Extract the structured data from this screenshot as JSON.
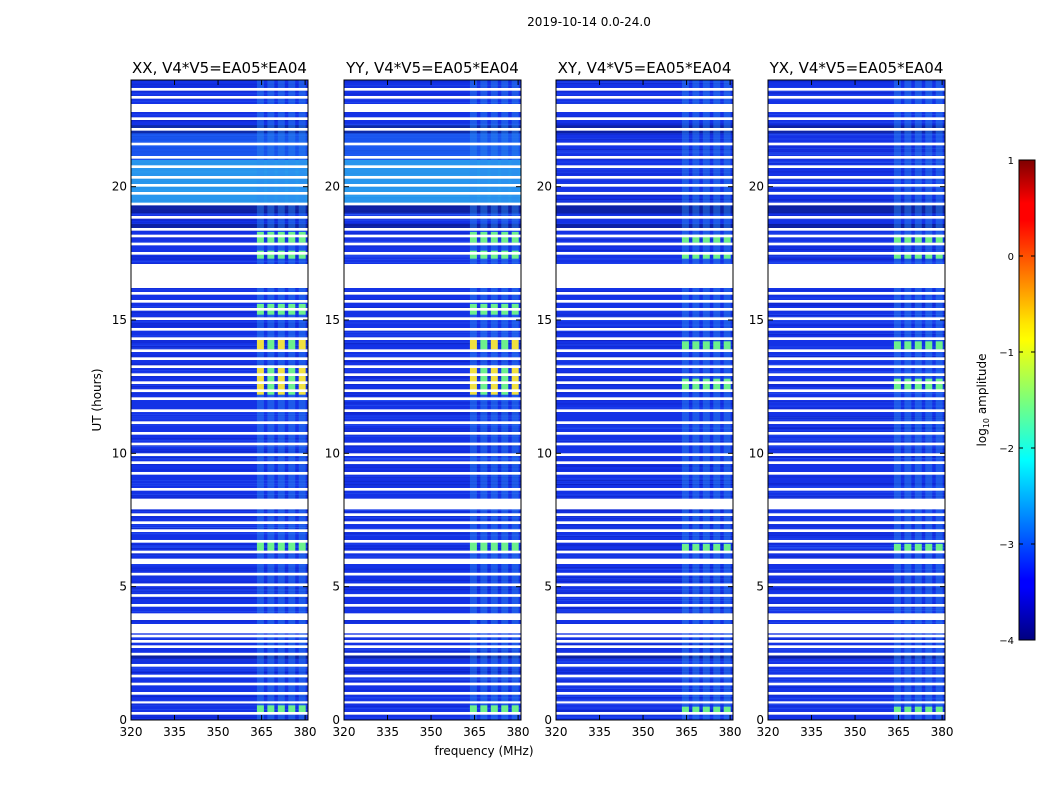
{
  "figure": {
    "title": "2019-10-14 0.0-24.0",
    "xlabel": "frequency (MHz)",
    "ylabel": "UT (hours)"
  },
  "chart_data": {
    "type": "heatmap",
    "x_range": [
      320,
      381
    ],
    "y_range": [
      0,
      24
    ],
    "xticks": [
      320,
      335,
      350,
      365,
      380
    ],
    "yticks": [
      0,
      5,
      10,
      15,
      20
    ],
    "panels": [
      {
        "title": "XX, V4*V5=EA05*EA04",
        "pol": "XX",
        "strong_rfi": true,
        "bright_evening": true,
        "ylabel_shown": true,
        "xlabel_shown": false
      },
      {
        "title": "YY, V4*V5=EA05*EA04",
        "pol": "YY",
        "strong_rfi": true,
        "bright_evening": true,
        "ylabel_shown": false,
        "xlabel_shown": true
      },
      {
        "title": "XY, V4*V5=EA05*EA04",
        "pol": "XY",
        "strong_rfi": false,
        "bright_evening": false,
        "ylabel_shown": false,
        "xlabel_shown": false
      },
      {
        "title": "YX, V4*V5=EA05*EA04",
        "pol": "YX",
        "strong_rfi": false,
        "bright_evening": false,
        "ylabel_shown": false,
        "xlabel_shown": false
      }
    ],
    "rfi_band_mhz": [
      363,
      381
    ],
    "flagged_time_ranges_hours": [
      [
        0.2,
        0.3
      ],
      [
        0.62,
        0.7
      ],
      [
        0.95,
        1.05
      ],
      [
        1.3,
        1.4
      ],
      [
        1.6,
        1.7
      ],
      [
        2.0,
        2.1
      ],
      [
        2.42,
        2.52
      ],
      [
        2.7,
        2.8
      ],
      [
        2.9,
        3.0
      ],
      [
        3.1,
        3.2
      ],
      [
        3.25,
        3.6
      ],
      [
        3.75,
        4.0
      ],
      [
        4.25,
        4.35
      ],
      [
        4.62,
        4.72
      ],
      [
        5.02,
        5.12
      ],
      [
        5.42,
        5.52
      ],
      [
        5.85,
        6.05
      ],
      [
        6.25,
        6.35
      ],
      [
        6.65,
        6.75
      ],
      [
        7.05,
        7.15
      ],
      [
        7.35,
        7.45
      ],
      [
        7.65,
        7.75
      ],
      [
        7.9,
        8.3
      ],
      [
        8.6,
        8.7
      ],
      [
        9.2,
        9.3
      ],
      [
        9.6,
        9.7
      ],
      [
        9.9,
        10.0
      ],
      [
        10.3,
        10.4
      ],
      [
        10.7,
        10.8
      ],
      [
        11.1,
        11.2
      ],
      [
        11.55,
        11.65
      ],
      [
        12.0,
        12.1
      ],
      [
        12.3,
        12.4
      ],
      [
        12.6,
        12.7
      ],
      [
        12.9,
        13.0
      ],
      [
        13.2,
        13.3
      ],
      [
        13.5,
        13.6
      ],
      [
        13.8,
        13.9
      ],
      [
        14.25,
        14.35
      ],
      [
        14.6,
        14.7
      ],
      [
        15.0,
        15.1
      ],
      [
        15.35,
        15.45
      ],
      [
        15.65,
        15.75
      ],
      [
        15.95,
        16.05
      ],
      [
        16.2,
        17.1
      ],
      [
        17.45,
        17.55
      ],
      [
        17.8,
        17.9
      ],
      [
        18.1,
        18.2
      ],
      [
        18.35,
        18.45
      ],
      [
        18.8,
        18.9
      ],
      [
        19.3,
        19.4
      ],
      [
        19.7,
        19.8
      ],
      [
        20.0,
        20.1
      ],
      [
        20.3,
        20.4
      ],
      [
        20.7,
        20.8
      ],
      [
        21.05,
        21.15
      ],
      [
        21.55,
        21.65
      ],
      [
        22.1,
        22.2
      ],
      [
        22.5,
        22.6
      ],
      [
        22.8,
        23.1
      ],
      [
        23.3,
        23.4
      ],
      [
        23.6,
        23.7
      ]
    ],
    "colorbar": {
      "label": "log",
      "label_subscript": "10",
      "label_suffix": " amplitude",
      "range": [
        -4,
        1
      ],
      "ticks": [
        "1",
        "0",
        "−1",
        "−2",
        "−3",
        "−4"
      ],
      "tick_values": [
        1,
        0,
        -1,
        -2,
        -3,
        -4
      ],
      "colormap": "jet"
    },
    "colors": {
      "background_level": "#1432e6",
      "rfi_level": "#6cf08c",
      "evening_level": "#2fb8f0",
      "strong_rfi_level": "#f0e040",
      "axis": "#000000"
    }
  }
}
